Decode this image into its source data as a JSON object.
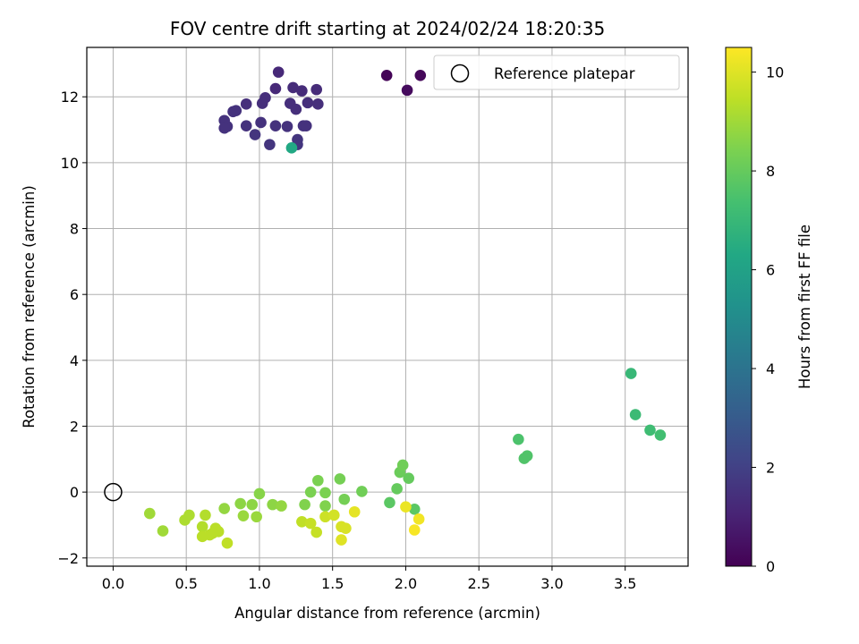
{
  "chart_data": {
    "type": "scatter",
    "title": "FOV centre drift starting at 2024/02/24 18:20:35",
    "xlabel": "Angular distance from reference (arcmin)",
    "ylabel": "Rotation from reference (arcmin)",
    "xlim": [
      -0.18,
      3.93
    ],
    "ylim": [
      -2.25,
      13.5
    ],
    "xticks": [
      "0.0",
      "0.5",
      "1.0",
      "1.5",
      "2.0",
      "2.5",
      "3.0",
      "3.5"
    ],
    "xtick_values": [
      0,
      0.5,
      1.0,
      1.5,
      2.0,
      2.5,
      3.0,
      3.5
    ],
    "yticks": [
      "−2",
      "0",
      "2",
      "4",
      "6",
      "8",
      "10",
      "12"
    ],
    "ytick_values": [
      -2,
      0,
      2,
      4,
      6,
      8,
      10,
      12
    ],
    "grid": true,
    "legend": {
      "label": "Reference platepar",
      "position": "upper right"
    },
    "reference_point": {
      "x": 0.0,
      "y": 0.0
    },
    "colorbar": {
      "label": "Hours from first FF file",
      "colormap": "viridis",
      "range": [
        0,
        10.5
      ],
      "ticks": [
        "0",
        "2",
        "4",
        "6",
        "8",
        "10"
      ],
      "tick_values": [
        0,
        2,
        4,
        6,
        8,
        10
      ]
    },
    "points": [
      {
        "x": 1.87,
        "y": 12.65,
        "c": 0.1
      },
      {
        "x": 2.1,
        "y": 12.65,
        "c": 0.2
      },
      {
        "x": 2.01,
        "y": 12.2,
        "c": 0.3
      },
      {
        "x": 1.13,
        "y": 12.75,
        "c": 1.2
      },
      {
        "x": 1.11,
        "y": 12.25,
        "c": 1.2
      },
      {
        "x": 1.23,
        "y": 12.28,
        "c": 1.3
      },
      {
        "x": 1.29,
        "y": 12.18,
        "c": 1.3
      },
      {
        "x": 1.39,
        "y": 12.22,
        "c": 1.3
      },
      {
        "x": 1.04,
        "y": 11.97,
        "c": 1.4
      },
      {
        "x": 1.02,
        "y": 11.8,
        "c": 1.4
      },
      {
        "x": 0.91,
        "y": 11.78,
        "c": 1.4
      },
      {
        "x": 1.21,
        "y": 11.8,
        "c": 1.4
      },
      {
        "x": 1.25,
        "y": 11.62,
        "c": 1.4
      },
      {
        "x": 1.33,
        "y": 11.82,
        "c": 1.4
      },
      {
        "x": 1.4,
        "y": 11.78,
        "c": 1.4
      },
      {
        "x": 0.82,
        "y": 11.55,
        "c": 1.5
      },
      {
        "x": 0.84,
        "y": 11.58,
        "c": 1.5
      },
      {
        "x": 0.76,
        "y": 11.28,
        "c": 1.5
      },
      {
        "x": 0.78,
        "y": 11.1,
        "c": 1.5
      },
      {
        "x": 0.76,
        "y": 11.05,
        "c": 1.5
      },
      {
        "x": 0.91,
        "y": 11.12,
        "c": 1.5
      },
      {
        "x": 1.01,
        "y": 11.22,
        "c": 1.5
      },
      {
        "x": 1.11,
        "y": 11.12,
        "c": 1.5
      },
      {
        "x": 1.19,
        "y": 11.1,
        "c": 1.5
      },
      {
        "x": 1.3,
        "y": 11.12,
        "c": 1.5
      },
      {
        "x": 1.32,
        "y": 11.12,
        "c": 1.5
      },
      {
        "x": 0.97,
        "y": 10.85,
        "c": 1.6
      },
      {
        "x": 1.07,
        "y": 10.55,
        "c": 1.6
      },
      {
        "x": 1.26,
        "y": 10.7,
        "c": 1.6
      },
      {
        "x": 1.26,
        "y": 10.55,
        "c": 1.6
      },
      {
        "x": 1.22,
        "y": 10.45,
        "c": 6.3
      },
      {
        "x": 3.54,
        "y": 3.6,
        "c": 7.0
      },
      {
        "x": 3.57,
        "y": 2.35,
        "c": 7.1
      },
      {
        "x": 3.67,
        "y": 1.88,
        "c": 7.2
      },
      {
        "x": 3.74,
        "y": 1.73,
        "c": 7.3
      },
      {
        "x": 2.77,
        "y": 1.6,
        "c": 7.5
      },
      {
        "x": 2.81,
        "y": 1.02,
        "c": 7.6
      },
      {
        "x": 2.83,
        "y": 1.1,
        "c": 7.6
      },
      {
        "x": 1.89,
        "y": -0.32,
        "c": 7.8
      },
      {
        "x": 2.06,
        "y": -0.52,
        "c": 7.8
      },
      {
        "x": 1.94,
        "y": 0.1,
        "c": 8.0
      },
      {
        "x": 2.02,
        "y": 0.42,
        "c": 8.0
      },
      {
        "x": 1.96,
        "y": 0.6,
        "c": 8.1
      },
      {
        "x": 1.98,
        "y": 0.82,
        "c": 8.2
      },
      {
        "x": 1.7,
        "y": 0.02,
        "c": 8.2
      },
      {
        "x": 1.58,
        "y": -0.22,
        "c": 8.3
      },
      {
        "x": 1.55,
        "y": 0.4,
        "c": 8.3
      },
      {
        "x": 1.4,
        "y": 0.35,
        "c": 8.4
      },
      {
        "x": 1.45,
        "y": -0.02,
        "c": 8.4
      },
      {
        "x": 1.35,
        "y": 0.0,
        "c": 8.4
      },
      {
        "x": 1.31,
        "y": -0.38,
        "c": 8.5
      },
      {
        "x": 1.45,
        "y": -0.42,
        "c": 8.5
      },
      {
        "x": 1.0,
        "y": -0.05,
        "c": 8.6
      },
      {
        "x": 0.95,
        "y": -0.38,
        "c": 8.7
      },
      {
        "x": 0.87,
        "y": -0.35,
        "c": 8.7
      },
      {
        "x": 1.09,
        "y": -0.38,
        "c": 8.7
      },
      {
        "x": 1.15,
        "y": -0.42,
        "c": 8.8
      },
      {
        "x": 0.76,
        "y": -0.5,
        "c": 8.8
      },
      {
        "x": 0.89,
        "y": -0.72,
        "c": 8.9
      },
      {
        "x": 0.98,
        "y": -0.75,
        "c": 8.9
      },
      {
        "x": 0.25,
        "y": -0.65,
        "c": 9.0
      },
      {
        "x": 0.34,
        "y": -1.18,
        "c": 9.0
      },
      {
        "x": 0.52,
        "y": -0.7,
        "c": 9.2
      },
      {
        "x": 0.49,
        "y": -0.85,
        "c": 9.2
      },
      {
        "x": 0.63,
        "y": -0.7,
        "c": 9.3
      },
      {
        "x": 0.61,
        "y": -1.05,
        "c": 9.3
      },
      {
        "x": 0.61,
        "y": -1.35,
        "c": 9.4
      },
      {
        "x": 0.66,
        "y": -1.3,
        "c": 9.4
      },
      {
        "x": 0.7,
        "y": -1.1,
        "c": 9.4
      },
      {
        "x": 0.72,
        "y": -1.2,
        "c": 9.4
      },
      {
        "x": 0.68,
        "y": -1.25,
        "c": 9.4
      },
      {
        "x": 0.78,
        "y": -1.55,
        "c": 9.5
      },
      {
        "x": 1.29,
        "y": -0.9,
        "c": 9.5
      },
      {
        "x": 1.35,
        "y": -0.95,
        "c": 9.6
      },
      {
        "x": 1.39,
        "y": -1.22,
        "c": 9.6
      },
      {
        "x": 1.45,
        "y": -0.75,
        "c": 9.7
      },
      {
        "x": 1.51,
        "y": -0.7,
        "c": 9.8
      },
      {
        "x": 1.56,
        "y": -1.05,
        "c": 9.9
      },
      {
        "x": 1.59,
        "y": -1.1,
        "c": 9.9
      },
      {
        "x": 1.56,
        "y": -1.45,
        "c": 10.0
      },
      {
        "x": 1.65,
        "y": -0.6,
        "c": 10.1
      },
      {
        "x": 2.0,
        "y": -0.45,
        "c": 10.2
      },
      {
        "x": 2.09,
        "y": -0.82,
        "c": 10.3
      },
      {
        "x": 2.06,
        "y": -1.15,
        "c": 10.4
      }
    ]
  }
}
